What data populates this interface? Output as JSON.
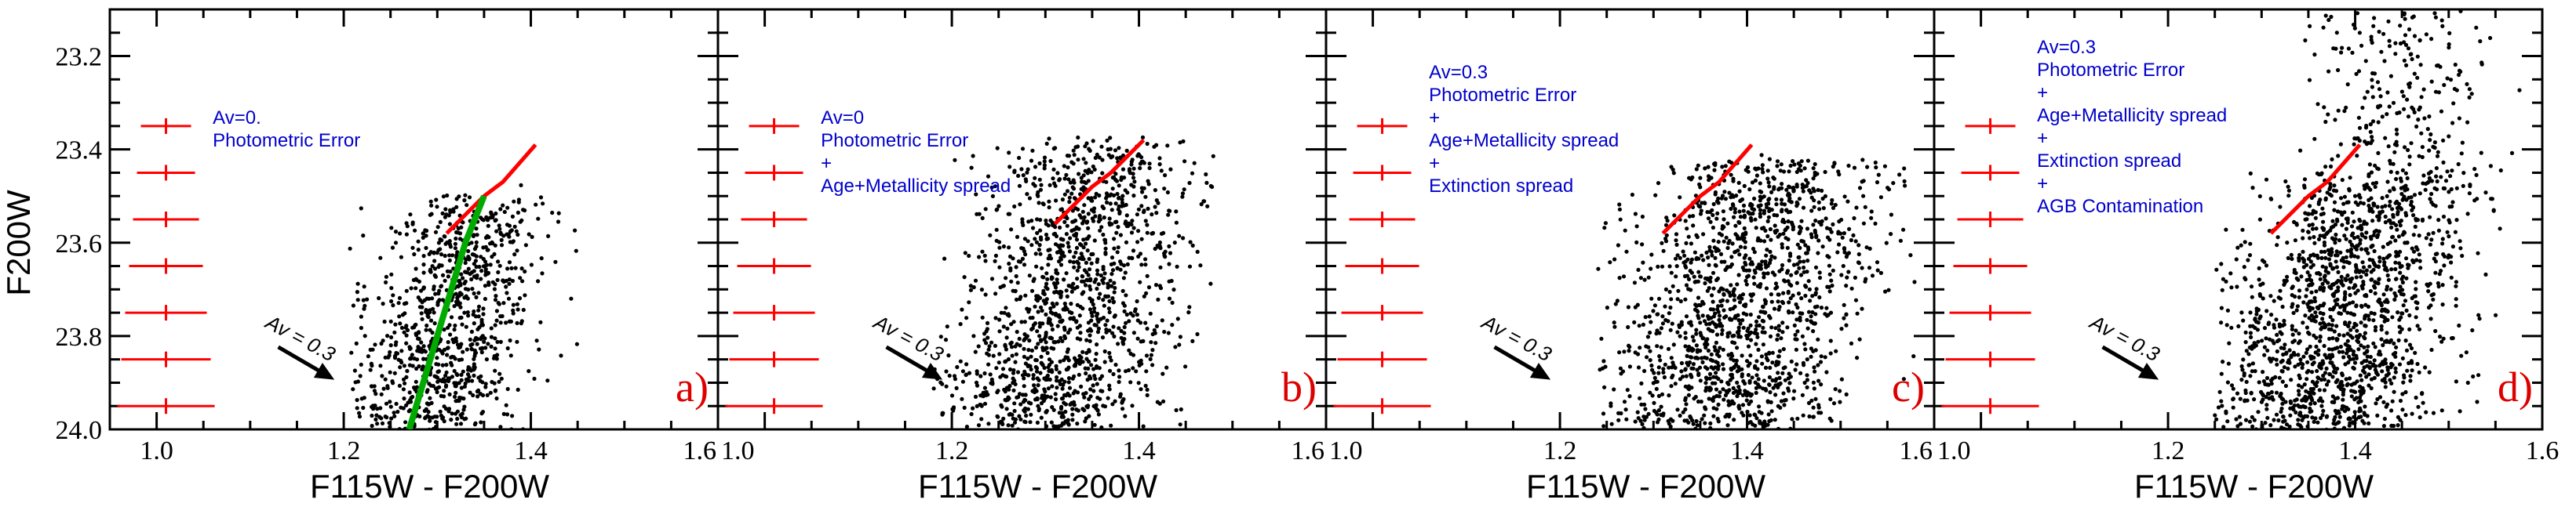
{
  "figure": {
    "ylabel": "F200W",
    "xlabel": "F115W - F200W",
    "axis_color": "#000000",
    "error_bar_color": "#ff0000",
    "red_line_color": "#ff0000",
    "green_line_color": "#00aa00",
    "annotation_color": "#0000cc",
    "label_color": "#dd0000",
    "reddening_label": "Av = 0.3"
  },
  "chart_data": [
    {
      "type": "scatter",
      "panel_label": "a)",
      "xlabel": "F115W - F200W",
      "ylabel": "F200W",
      "xlim": [
        0.95,
        1.6
      ],
      "ylim": [
        24.0,
        23.1
      ],
      "x_ticks": [
        "1.0",
        "1.2",
        "1.4",
        "1.6"
      ],
      "y_ticks": [
        "23.2",
        "23.4",
        "23.6",
        "23.8",
        "24.0"
      ],
      "annotation_lines": [
        "Av=0.",
        "Photometric Error"
      ],
      "error_bars": [
        {
          "mag": 23.35,
          "err": 0.03
        },
        {
          "mag": 23.45,
          "err": 0.03
        },
        {
          "mag": 23.55,
          "err": 0.035
        },
        {
          "mag": 23.65,
          "err": 0.04
        },
        {
          "mag": 23.75,
          "err": 0.045
        },
        {
          "mag": 23.85,
          "err": 0.05
        },
        {
          "mag": 23.95,
          "err": 0.055
        }
      ],
      "red_line": [
        [
          1.31,
          23.58
        ],
        [
          1.35,
          23.5
        ],
        [
          1.37,
          23.47
        ],
        [
          1.405,
          23.39
        ]
      ],
      "green_line": [
        [
          1.27,
          24.0
        ],
        [
          1.3,
          23.8
        ],
        [
          1.33,
          23.6
        ],
        [
          1.35,
          23.5
        ]
      ],
      "reddening_vector": {
        "av": 0.3,
        "from": [
          1.13,
          23.8
        ],
        "to": [
          1.19,
          23.87
        ]
      },
      "cloud": {
        "n": 950,
        "x_center": 1.315,
        "x_sigma": 0.045,
        "x_slope": -0.12,
        "y_min": 23.5,
        "y_max": 24.0,
        "x_min": 1.2,
        "x_max": 1.45
      }
    },
    {
      "type": "scatter",
      "panel_label": "b)",
      "xlabel": "F115W - F200W",
      "ylabel": "F200W",
      "xlim": [
        0.95,
        1.6
      ],
      "ylim": [
        24.0,
        23.1
      ],
      "x_ticks": [
        "1.6",
        "1.0",
        "1.2",
        "1.4"
      ],
      "y_ticks": [
        "23.2",
        "23.4",
        "23.6",
        "23.8",
        "24.0"
      ],
      "annotation_lines": [
        "Av=0",
        "Photometric Error",
        "+",
        "Age+Metallicity spread"
      ],
      "error_bars": [
        {
          "mag": 23.35,
          "err": 0.03
        },
        {
          "mag": 23.45,
          "err": 0.03
        },
        {
          "mag": 23.55,
          "err": 0.035
        },
        {
          "mag": 23.65,
          "err": 0.04
        },
        {
          "mag": 23.75,
          "err": 0.045
        },
        {
          "mag": 23.85,
          "err": 0.05
        },
        {
          "mag": 23.95,
          "err": 0.055
        }
      ],
      "red_line": [
        [
          1.31,
          23.56
        ],
        [
          1.35,
          23.48
        ],
        [
          1.37,
          23.45
        ],
        [
          1.405,
          23.38
        ]
      ],
      "reddening_vector": {
        "av": 0.3,
        "from": [
          1.13,
          23.8
        ],
        "to": [
          1.19,
          23.87
        ]
      },
      "cloud": {
        "n": 1400,
        "x_center": 1.33,
        "x_sigma": 0.06,
        "x_slope": -0.13,
        "y_min": 23.38,
        "y_max": 24.0,
        "x_min": 1.18,
        "x_max": 1.48
      }
    },
    {
      "type": "scatter",
      "panel_label": "c)",
      "xlabel": "F115W - F200W",
      "ylabel": "F200W",
      "xlim": [
        0.95,
        1.6
      ],
      "ylim": [
        24.0,
        23.1
      ],
      "x_ticks": [
        "1.6",
        "1.0",
        "1.2",
        "1.4"
      ],
      "y_ticks": [
        "23.2",
        "23.4",
        "23.6",
        "23.8",
        "24.0"
      ],
      "annotation_lines": [
        "Av=0.3",
        "Photometric Error",
        "+",
        "Age+Metallicity spread",
        "+",
        "Extinction spread"
      ],
      "error_bars": [
        {
          "mag": 23.35,
          "err": 0.03
        },
        {
          "mag": 23.45,
          "err": 0.03
        },
        {
          "mag": 23.55,
          "err": 0.035
        },
        {
          "mag": 23.65,
          "err": 0.04
        },
        {
          "mag": 23.75,
          "err": 0.045
        },
        {
          "mag": 23.85,
          "err": 0.05
        },
        {
          "mag": 23.95,
          "err": 0.055
        }
      ],
      "red_line": [
        [
          1.31,
          23.58
        ],
        [
          1.35,
          23.5
        ],
        [
          1.37,
          23.47
        ],
        [
          1.405,
          23.39
        ]
      ],
      "reddening_vector": {
        "av": 0.3,
        "from": [
          1.13,
          23.8
        ],
        "to": [
          1.19,
          23.87
        ]
      },
      "cloud": {
        "n": 1500,
        "x_center": 1.4,
        "x_sigma": 0.065,
        "x_slope": -0.14,
        "y_min": 23.42,
        "y_max": 24.0,
        "x_min": 1.24,
        "x_max": 1.58
      }
    },
    {
      "type": "scatter",
      "panel_label": "d)",
      "xlabel": "F115W - F200W",
      "ylabel": "F200W",
      "xlim": [
        0.95,
        1.6
      ],
      "ylim": [
        24.0,
        23.1
      ],
      "x_ticks": [
        "1.6",
        "1.0",
        "1.2",
        "1.4",
        "1.6"
      ],
      "y_ticks": [
        "23.2",
        "23.4",
        "23.6",
        "23.8",
        "24.0"
      ],
      "annotation_lines": [
        "Av=0.3",
        "Photometric Error",
        "+",
        "Age+Metallicity spread",
        "+",
        "Extinction spread",
        "+",
        "AGB Contamination"
      ],
      "error_bars": [
        {
          "mag": 23.35,
          "err": 0.03
        },
        {
          "mag": 23.45,
          "err": 0.03
        },
        {
          "mag": 23.55,
          "err": 0.035
        },
        {
          "mag": 23.65,
          "err": 0.04
        },
        {
          "mag": 23.75,
          "err": 0.045
        },
        {
          "mag": 23.85,
          "err": 0.05
        },
        {
          "mag": 23.95,
          "err": 0.055
        }
      ],
      "red_line": [
        [
          1.31,
          23.58
        ],
        [
          1.35,
          23.5
        ],
        [
          1.37,
          23.47
        ],
        [
          1.405,
          23.39
        ]
      ],
      "reddening_vector": {
        "av": 0.3,
        "from": [
          1.13,
          23.8
        ],
        "to": [
          1.19,
          23.87
        ]
      },
      "cloud": {
        "n": 1500,
        "x_center": 1.39,
        "x_sigma": 0.06,
        "x_slope": -0.14,
        "y_min": 23.45,
        "y_max": 24.0,
        "x_min": 1.25,
        "x_max": 1.56
      },
      "agb_cloud": {
        "n": 230,
        "x_center": 1.45,
        "x_sigma": 0.045,
        "y_min": 23.1,
        "y_max": 23.45,
        "x_min": 1.3,
        "x_max": 1.58
      }
    }
  ]
}
